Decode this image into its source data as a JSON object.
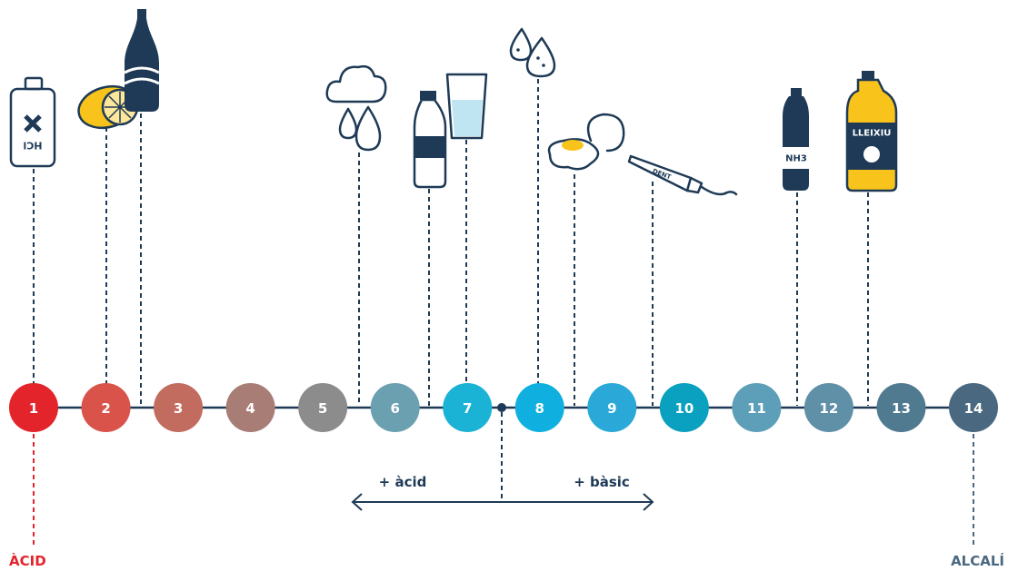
{
  "scale": {
    "steps": [
      {
        "label": "1",
        "color": "#e3242b"
      },
      {
        "label": "2",
        "color": "#d9534a"
      },
      {
        "label": "3",
        "color": "#c26b5f"
      },
      {
        "label": "4",
        "color": "#a87d76"
      },
      {
        "label": "5",
        "color": "#8c8c8c"
      },
      {
        "label": "6",
        "color": "#6aa0b0"
      },
      {
        "label": "7",
        "color": "#1ab3d6"
      },
      {
        "label": "8",
        "color": "#0fb0e0"
      },
      {
        "label": "9",
        "color": "#2aa9d8"
      },
      {
        "label": "10",
        "color": "#0aa0bf"
      },
      {
        "label": "11",
        "color": "#5d9fb8"
      },
      {
        "label": "12",
        "color": "#6090a8"
      },
      {
        "label": "13",
        "color": "#4f7a90"
      },
      {
        "label": "14",
        "color": "#4a6880"
      }
    ],
    "left_label": "ÀCID",
    "right_label": "ALCALÍ",
    "more_acid": "+ àcid",
    "more_basic": "+ bàsic"
  },
  "icons": {
    "hcl": "HCl",
    "toothpaste": "DENT",
    "ammonia": "NH3",
    "bleach": "LLEIXIU"
  }
}
